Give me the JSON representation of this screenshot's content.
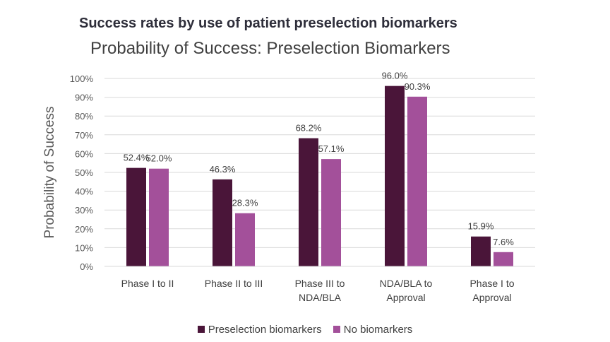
{
  "heading": "Success rates by use of patient preselection biomarkers",
  "chart_data": {
    "type": "bar",
    "title": "Probability of Success: Preselection Biomarkers",
    "xlabel": "",
    "ylabel": "Probability of Success",
    "ylim": [
      0,
      100
    ],
    "yticks": [
      "0%",
      "10%",
      "20%",
      "30%",
      "40%",
      "50%",
      "60%",
      "70%",
      "80%",
      "90%",
      "100%"
    ],
    "categories": [
      [
        "Phase I to II"
      ],
      [
        "Phase II to III"
      ],
      [
        "Phase III to",
        "NDA/BLA"
      ],
      [
        "NDA/BLA to",
        "Approval"
      ],
      [
        "Phase I to",
        "Approval"
      ]
    ],
    "series": [
      {
        "name": "Preselection biomarkers",
        "color": "#4a1539",
        "values": [
          52.4,
          46.3,
          68.2,
          96.0,
          15.9
        ],
        "labels": [
          "52.4%",
          "46.3%",
          "68.2%",
          "96.0%",
          "15.9%"
        ]
      },
      {
        "name": "No biomarkers",
        "color": "#a3509a",
        "values": [
          52.0,
          28.3,
          57.1,
          90.3,
          7.6
        ],
        "labels": [
          "52.0%",
          "28.3%",
          "57.1%",
          "90.3%",
          "7.6%"
        ]
      }
    ],
    "grid": true,
    "legend": "bottom"
  }
}
